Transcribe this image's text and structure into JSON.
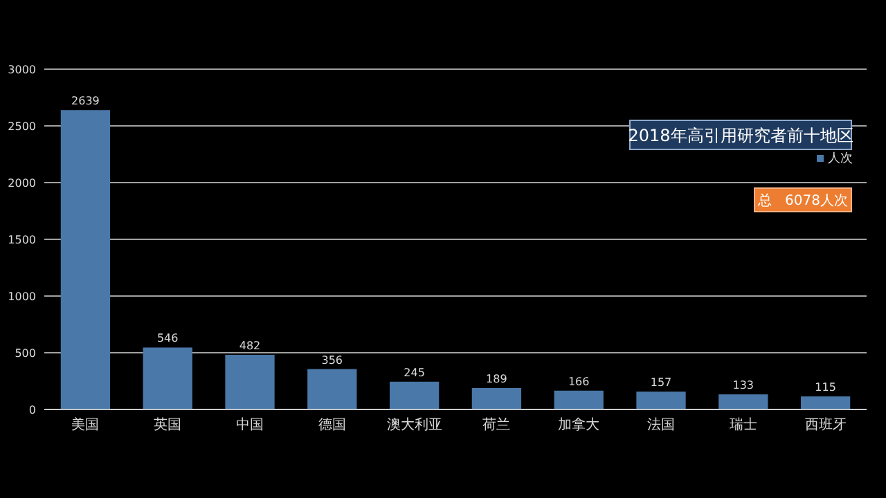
{
  "chart_data": {
    "type": "bar",
    "title": "2018年高引用研究者前十地区",
    "categories": [
      "美国",
      "英国",
      "中国",
      "德国",
      "澳大利亚",
      "荷兰",
      "加拿大",
      "法国",
      "瑞士",
      "西班牙"
    ],
    "series": [
      {
        "name": "人次",
        "color": "#4a78a8",
        "values": [
          2639,
          546,
          482,
          356,
          245,
          189,
          166,
          157,
          133,
          115
        ]
      }
    ],
    "ylim": [
      0,
      3000
    ],
    "yticks": [
      0,
      500,
      1000,
      1500,
      2000,
      2500,
      3000
    ],
    "grid": "y",
    "legend": "top right",
    "data_labels": true,
    "annotations": [
      "总   6078人次"
    ]
  }
}
